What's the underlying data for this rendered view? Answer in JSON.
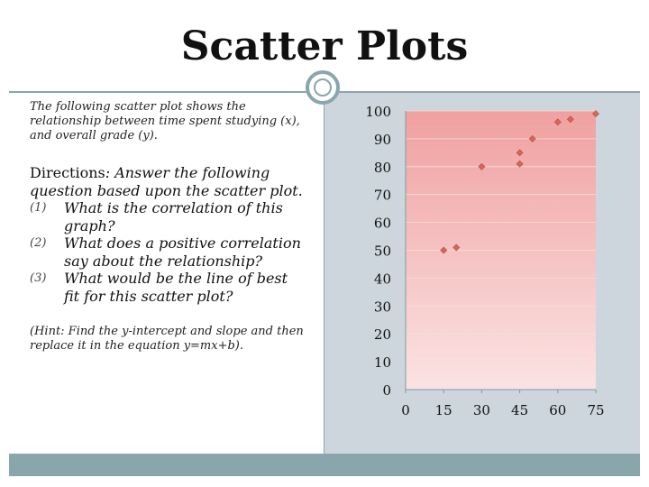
{
  "slide": {
    "title": "Scatter Plots",
    "intro": "The following scatter plot shows the relationship between time spent studying (x), and  overall grade (y).",
    "directions_head": "Directions",
    "directions_rest": ": Answer the following question based upon the scatter plot.",
    "questions": [
      {
        "num": "(1)",
        "text": "What is the correlation of this graph?"
      },
      {
        "num": "(2)",
        "text": "What does a positive correlation say about the relationship?"
      },
      {
        "num": "(3)",
        "text": "What would be the line of best fit for this scatter plot?"
      }
    ],
    "hint": "(Hint: Find the y-intercept and slope and then replace it in the equation y=mx+b)."
  },
  "colors": {
    "accent": "#8aa6ad",
    "panel": "#ccd6dc",
    "plot_top": "#f0a0a0",
    "plot_bottom": "#fbe3e3",
    "marker": "#d9665a"
  },
  "chart_data": {
    "type": "scatter",
    "title": "",
    "xlabel": "",
    "ylabel": "",
    "xlim": [
      0,
      75
    ],
    "ylim": [
      0,
      100
    ],
    "x_ticks": [
      "0",
      "15",
      "30",
      "45",
      "60",
      "75"
    ],
    "y_ticks": [
      "0",
      "10",
      "20",
      "30",
      "40",
      "50",
      "60",
      "70",
      "80",
      "90",
      "100"
    ],
    "grid": false,
    "legend": "none",
    "series": [
      {
        "points": [
          {
            "x": 15,
            "y": 50
          },
          {
            "x": 20,
            "y": 51
          },
          {
            "x": 30,
            "y": 80
          },
          {
            "x": 45,
            "y": 81
          },
          {
            "x": 45,
            "y": 85
          },
          {
            "x": 50,
            "y": 90
          },
          {
            "x": 60,
            "y": 96
          },
          {
            "x": 65,
            "y": 97
          },
          {
            "x": 75,
            "y": 99
          }
        ]
      }
    ]
  }
}
